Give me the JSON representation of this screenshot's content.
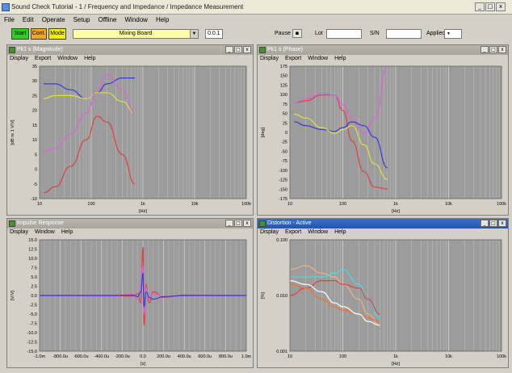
{
  "window": {
    "title": "Sound Check Tutorial - 1 / Frequency and Impedance / Impedance Measurement",
    "min": "_",
    "max": "□",
    "close": "x"
  },
  "menu": [
    "File",
    "Edit",
    "Operate",
    "Setup",
    "Offline",
    "Window",
    "Help"
  ],
  "toolbar": {
    "start": "Start",
    "cont": "Cont.",
    "mode": "Mode",
    "sequence": "Mixing Board",
    "step": "0.0.1",
    "pause_label": "Pause",
    "lot_label": "Lot",
    "s_label": "S/N",
    "applied_label": "Applied",
    "colors": {
      "start": "#2ecf20",
      "cont": "#f5a623",
      "mode": "#f0f000"
    }
  },
  "panels": [
    {
      "title": "Pk1 s (Magnitude)",
      "menu": [
        "Display",
        "Export",
        "Window",
        "Help"
      ],
      "chart_data": {
        "type": "line",
        "xscale": "log",
        "xlim": [
          10,
          1000
        ],
        "ylim": [
          -10,
          35
        ],
        "xticks": [
          "10",
          "100",
          "1k",
          "10k",
          "100k"
        ],
        "yticks": [
          "35",
          "30",
          "25",
          "20",
          "15",
          "10",
          "5",
          "0",
          "-5",
          "-10"
        ],
        "xlabel": "[Hz]",
        "ylabel": "[dB re 1 V/V]",
        "series": [
          {
            "color": "#3a3ad8",
            "x": [
              12,
              20,
              40,
              80,
              130,
              200,
              400,
              700
            ],
            "y": [
              29,
              29,
              27,
              24,
              26,
              29,
              31,
              31
            ]
          },
          {
            "color": "#e0e040",
            "x": [
              12,
              20,
              40,
              80,
              130,
              200,
              400,
              700
            ],
            "y": [
              24,
              25,
              25,
              24,
              26,
              26,
              23,
              19
            ]
          },
          {
            "color": "#e060e0",
            "x": [
              12,
              20,
              40,
              80,
              130,
              200,
              400,
              700
            ],
            "y": [
              6,
              7,
              12,
              19,
              27,
              32,
              27,
              19
            ]
          },
          {
            "color": "#e04040",
            "x": [
              12,
              20,
              40,
              80,
              130,
              200,
              400,
              700
            ],
            "y": [
              -8,
              -6,
              1,
              10,
              18,
              16,
              5,
              -5
            ]
          }
        ]
      }
    },
    {
      "title": "Pk1 s (Phase)",
      "menu": [
        "Display",
        "Export",
        "Window",
        "Help"
      ],
      "chart_data": {
        "type": "line",
        "xscale": "log",
        "xlim": [
          10,
          1000
        ],
        "ylim": [
          -170,
          175
        ],
        "xticks": [
          "10",
          "100",
          "1k",
          "10k",
          "100k"
        ],
        "yticks": [
          "175",
          "150",
          "125",
          "100",
          "75",
          "50",
          "25",
          "0",
          "-25",
          "-50",
          "-75",
          "-100",
          "-125",
          "-150",
          "-175"
        ],
        "xlabel": "[Hz]",
        "ylabel": "[deg]",
        "series": [
          {
            "color": "#e04040",
            "x": [
              12,
              20,
              40,
              70,
              100,
              150,
              250,
              400,
              700
            ],
            "y": [
              80,
              85,
              100,
              100,
              60,
              -20,
              -100,
              -140,
              -145
            ]
          },
          {
            "color": "#e060e0",
            "x": [
              12,
              20,
              40,
              70,
              100,
              150,
              250,
              400,
              700
            ],
            "y": [
              80,
              90,
              105,
              100,
              75,
              40,
              0,
              40,
              175
            ]
          },
          {
            "color": "#3a3ad8",
            "x": [
              12,
              20,
              40,
              70,
              100,
              150,
              250,
              400,
              700
            ],
            "y": [
              30,
              20,
              10,
              5,
              15,
              30,
              20,
              -10,
              -90
            ]
          },
          {
            "color": "#e0e040",
            "x": [
              12,
              20,
              40,
              70,
              100,
              150,
              250,
              400,
              700
            ],
            "y": [
              50,
              40,
              15,
              0,
              10,
              20,
              -30,
              -80,
              -120
            ]
          }
        ]
      }
    },
    {
      "title": "Impulse Response",
      "menu": [
        "Display",
        "Window",
        "Help"
      ],
      "chart_data": {
        "type": "line",
        "xlim": [
          -1,
          1
        ],
        "ylim": [
          -15,
          15
        ],
        "xticks": [
          "-1.0m",
          "-800.0u",
          "-600.0u",
          "-400.0u",
          "-200.0u",
          "0.0",
          "200.0u",
          "400.0u",
          "600.0u",
          "800.0u",
          "1.0m"
        ],
        "yticks": [
          "15.0",
          "12.5",
          "10.0",
          "7.5",
          "5.0",
          "2.5",
          "0.0",
          "-2.5",
          "-5.0",
          "-7.5",
          "-10.0",
          "-12.5",
          "-15.0"
        ],
        "xlabel": "[s]",
        "ylabel": "[V/V]",
        "series": [
          {
            "color": "#e04040",
            "x": [
              -1,
              -0.3,
              -0.1,
              -0.05,
              -0.02,
              0,
              0.01,
              0.03,
              0.06,
              0.1,
              0.2,
              0.4,
              1
            ],
            "y": [
              0,
              0,
              -0.2,
              0.5,
              -2,
              13,
              -8,
              3,
              -2,
              1,
              -0.5,
              0.1,
              0
            ]
          },
          {
            "color": "#e060e0",
            "x": [
              -1,
              -0.3,
              -0.1,
              -0.05,
              -0.02,
              0,
              0.01,
              0.03,
              0.06,
              0.1,
              0.2,
              0.4,
              1
            ],
            "y": [
              0,
              -0.2,
              0.3,
              -1,
              3,
              8,
              -5,
              2,
              -1,
              0.5,
              -0.3,
              0,
              0
            ]
          },
          {
            "color": "#3a3ad8",
            "x": [
              -1,
              -0.3,
              -0.1,
              -0.05,
              -0.02,
              0,
              0.01,
              0.03,
              0.06,
              0.1,
              0.2,
              0.4,
              1
            ],
            "y": [
              0,
              0,
              0.1,
              -0.3,
              1,
              6,
              -3,
              1,
              -0.5,
              -1,
              -0.3,
              0,
              0
            ]
          }
        ]
      }
    },
    {
      "title": "Distortion - Active",
      "menu": [
        "Display",
        "Export",
        "Window",
        "Help"
      ],
      "chart_data": {
        "type": "line",
        "xscale": "log",
        "xlim": [
          10,
          1000
        ],
        "ylim": [
          -3,
          0
        ],
        "xticks": [
          "10",
          "100",
          "1k",
          "10k",
          "100k"
        ],
        "yticks": [
          "0.100",
          "0.010",
          "0.001"
        ],
        "xlabel": "[Hz]",
        "ylabel": "[%]",
        "series": [
          {
            "color": "#f0b080",
            "x": [
              10,
              20,
              40,
              70,
              100,
              200,
              300,
              500
            ],
            "y": [
              -0.8,
              -0.7,
              -0.9,
              -1.0,
              -1.2,
              -1.6,
              -2.0,
              -2.3
            ]
          },
          {
            "color": "#40e0e0",
            "x": [
              10,
              20,
              40,
              70,
              100,
              200,
              300,
              500
            ],
            "y": [
              -1.0,
              -1.0,
              -1.0,
              -0.9,
              -0.8,
              -1.2,
              -1.6,
              -2.1
            ]
          },
          {
            "color": "#e04040",
            "x": [
              10,
              20,
              40,
              70,
              100,
              200,
              300,
              500
            ],
            "y": [
              -1.5,
              -1.3,
              -1.1,
              -1.1,
              -1.2,
              -1.3,
              -1.6,
              -2.0
            ]
          },
          {
            "color": "#f07030",
            "x": [
              10,
              20,
              40,
              70,
              100,
              200,
              300,
              500
            ],
            "y": [
              -1.2,
              -1.3,
              -1.6,
              -1.8,
              -1.9,
              -2.0,
              -2.1,
              -2.2
            ]
          },
          {
            "color": "#ffffff",
            "x": [
              10,
              20,
              40,
              70,
              100,
              200,
              300,
              500
            ],
            "y": [
              -1.1,
              -1.2,
              -1.4,
              -1.7,
              -1.8,
              -2.0,
              -2.2,
              -2.3
            ]
          }
        ]
      }
    }
  ]
}
